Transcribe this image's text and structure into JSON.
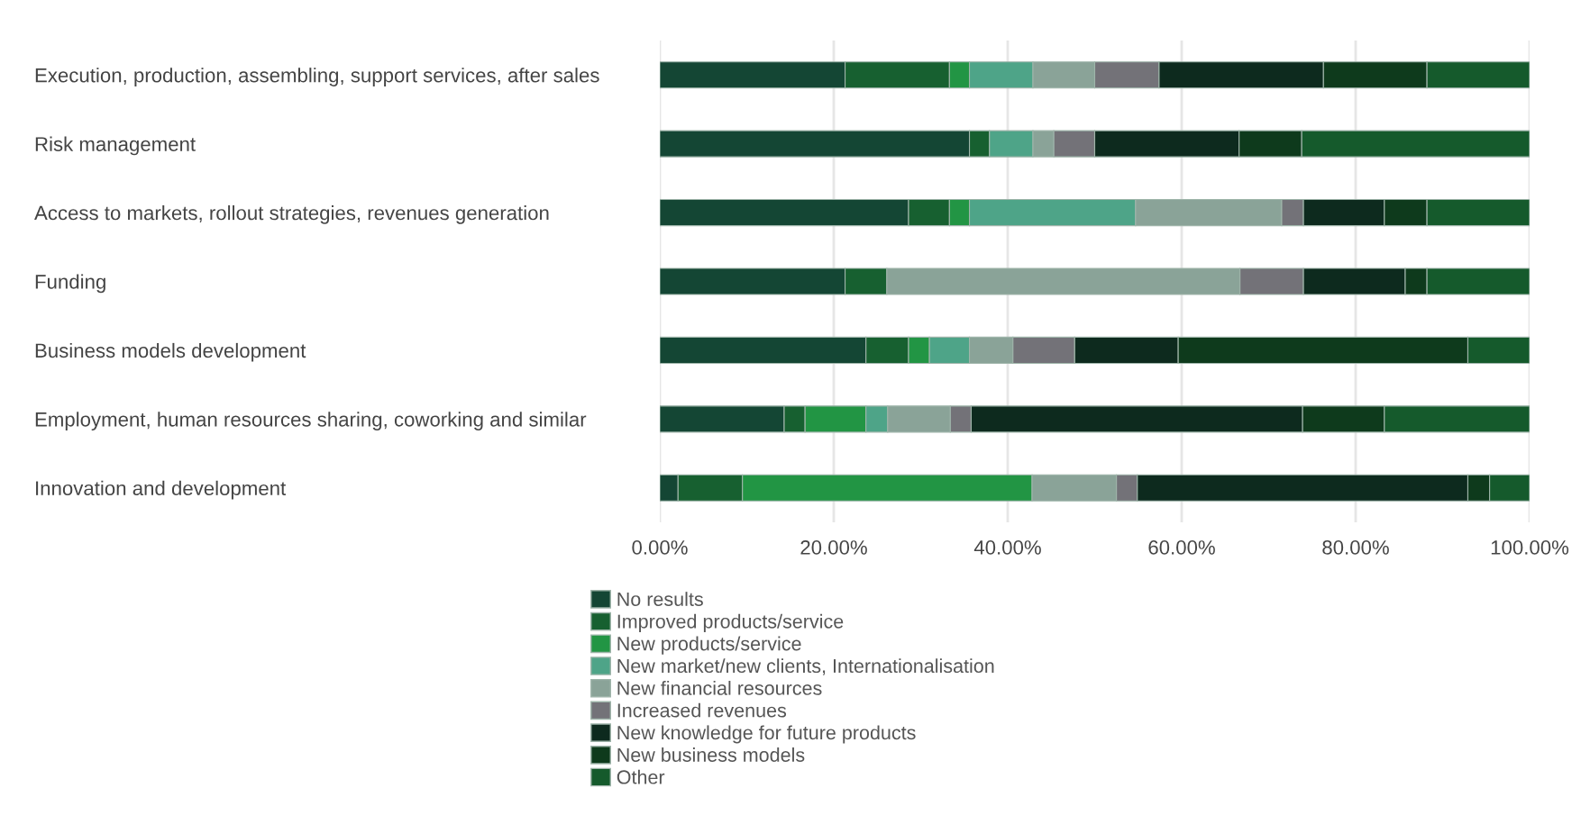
{
  "chart_data": {
    "type": "bar",
    "orientation": "horizontal",
    "stacked": true,
    "categories": [
      "Execution, production, assembling, support services, after sales",
      "Risk management",
      "Access to markets, rollout strategies, revenues generation",
      "Funding",
      "Business models development",
      "Employment, human resources sharing, coworking and similar",
      "Innovation and development"
    ],
    "series": [
      {
        "name": "No results",
        "color": "#144634",
        "values": [
          21.3,
          35.6,
          28.6,
          21.3,
          23.7,
          14.3,
          2.1
        ]
      },
      {
        "name": "Improved products/service",
        "color": "#176030",
        "values": [
          12.0,
          2.3,
          4.7,
          4.8,
          4.9,
          2.4,
          7.4
        ]
      },
      {
        "name": "New products/service",
        "color": "#229544",
        "values": [
          2.3,
          null,
          2.3,
          null,
          2.4,
          7.0,
          33.3
        ]
      },
      {
        "name": "New market/new clients, Internationalisation",
        "color": "#4ea488",
        "values": [
          7.3,
          5.0,
          19.1,
          null,
          4.6,
          2.5,
          null
        ]
      },
      {
        "name": "New financial resources",
        "color": "#8aa398",
        "values": [
          7.1,
          2.4,
          16.8,
          40.6,
          5.0,
          7.2,
          9.7
        ]
      },
      {
        "name": "Increased revenues",
        "color": "#737278",
        "values": [
          7.4,
          4.7,
          2.5,
          7.3,
          7.1,
          2.4,
          2.4
        ]
      },
      {
        "name": "New knowledge for future products",
        "color": "#0d2a1e",
        "values": [
          18.9,
          16.6,
          9.3,
          11.7,
          11.9,
          38.1,
          38.0
        ]
      },
      {
        "name": "New business models",
        "color": "#0e3a1c",
        "values": [
          11.9,
          7.2,
          4.9,
          2.5,
          33.3,
          9.4,
          2.5
        ]
      },
      {
        "name": "Other",
        "color": "#155a2c",
        "values": [
          11.8,
          26.2,
          11.8,
          11.8,
          7.1,
          16.7,
          4.6
        ]
      }
    ],
    "xlim": [
      0,
      100
    ],
    "xticks": [
      {
        "value": 0,
        "label": "0.00%"
      },
      {
        "value": 20,
        "label": "20.00%"
      },
      {
        "value": 40,
        "label": "40.00%"
      },
      {
        "value": 60,
        "label": "60.00%"
      },
      {
        "value": 80,
        "label": "80.00%"
      },
      {
        "value": 100,
        "label": "100.00%"
      }
    ],
    "grid": "x",
    "legend": "bottom"
  }
}
